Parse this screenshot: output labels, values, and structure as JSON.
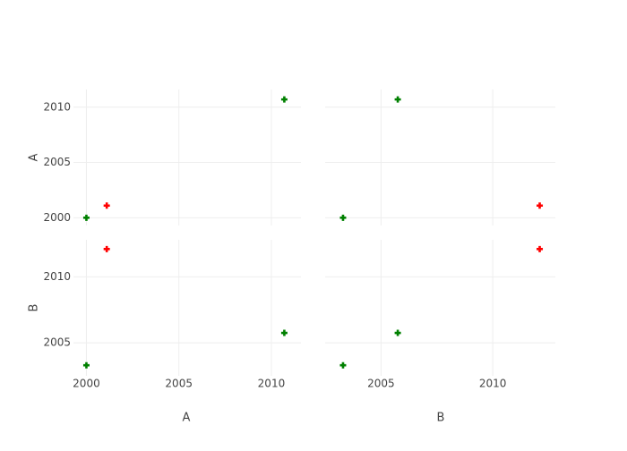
{
  "chart_data": {
    "type": "splom",
    "dimensions": [
      {
        "label": "A",
        "values": [
          2000,
          2001.1,
          2010.7
        ],
        "lim": [
          1999.3,
          2011.6
        ],
        "ticks": [
          2000,
          2005,
          2010
        ]
      },
      {
        "label": "B",
        "values": [
          2003.3,
          2012.1,
          2005.75
        ],
        "lim": [
          2002.5,
          2012.8
        ],
        "ticks": [
          2005,
          2010
        ]
      }
    ],
    "colors": [
      "#008000",
      "#ff0000",
      "#008000"
    ],
    "marker": "cross",
    "grid": true
  }
}
